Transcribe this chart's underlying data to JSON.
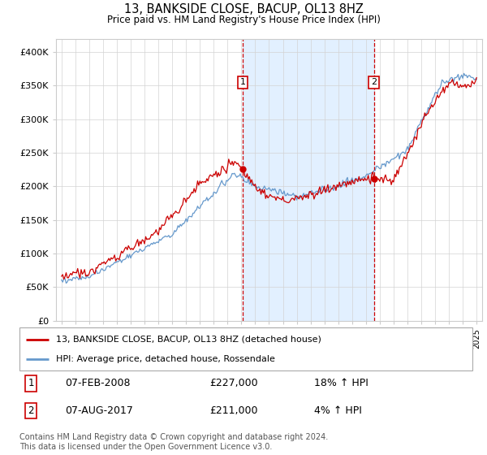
{
  "title": "13, BANKSIDE CLOSE, BACUP, OL13 8HZ",
  "subtitle": "Price paid vs. HM Land Registry's House Price Index (HPI)",
  "legend_line1": "13, BANKSIDE CLOSE, BACUP, OL13 8HZ (detached house)",
  "legend_line2": "HPI: Average price, detached house, Rossendale",
  "footnote": "Contains HM Land Registry data © Crown copyright and database right 2024.\nThis data is licensed under the Open Government Licence v3.0.",
  "annotation1_label": "1",
  "annotation1_date": "07-FEB-2008",
  "annotation1_price": "£227,000",
  "annotation1_hpi": "18% ↑ HPI",
  "annotation2_label": "2",
  "annotation2_date": "07-AUG-2017",
  "annotation2_price": "£211,000",
  "annotation2_hpi": "4% ↑ HPI",
  "red_line_color": "#cc0000",
  "blue_line_color": "#6699cc",
  "vline_color": "#cc0000",
  "bg_highlight_color": "#ddeeff",
  "ylim": [
    0,
    420000
  ],
  "yticks": [
    0,
    50000,
    100000,
    150000,
    200000,
    250000,
    300000,
    350000,
    400000
  ],
  "ytick_labels": [
    "£0",
    "£50K",
    "£100K",
    "£150K",
    "£200K",
    "£250K",
    "£300K",
    "£350K",
    "£400K"
  ]
}
